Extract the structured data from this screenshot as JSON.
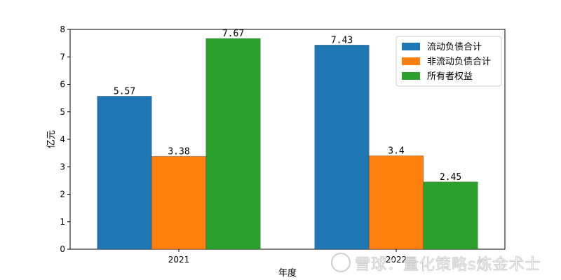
{
  "chart_data": {
    "type": "bar",
    "categories": [
      "2021",
      "2022"
    ],
    "series": [
      {
        "name": "流动负债合计",
        "values": [
          5.57,
          7.43
        ],
        "color": "#1f77b4"
      },
      {
        "name": "非流动负债合计",
        "values": [
          3.38,
          3.4
        ],
        "color": "#ff7f0e"
      },
      {
        "name": "所有者权益",
        "values": [
          7.67,
          2.45
        ],
        "color": "#2ca02c"
      }
    ],
    "data_labels": [
      [
        "5.57",
        "7.43"
      ],
      [
        "3.38",
        "3.4"
      ],
      [
        "7.67",
        "2.45"
      ]
    ],
    "xlabel": "年度",
    "ylabel": "亿元",
    "ylim": [
      0,
      8
    ],
    "yticks": [
      0,
      1,
      2,
      3,
      4,
      5,
      6,
      7,
      8
    ],
    "legend_position": "top-right",
    "grid": false
  },
  "watermark": {
    "icon": "snowball-logo-icon",
    "text": "雪球：量化策略s炼金术士"
  }
}
